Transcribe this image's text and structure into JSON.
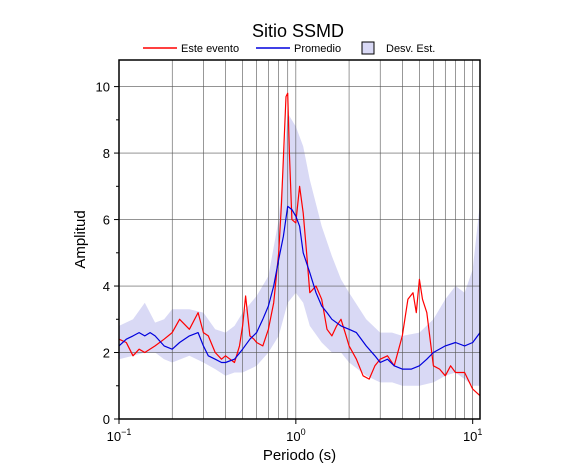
{
  "chart_data": {
    "type": "line",
    "title": "Sitio SSMD",
    "xlabel": "Periodo (s)",
    "ylabel": "Amplitud",
    "xscale": "log",
    "xlim": [
      0.1,
      11
    ],
    "ylim": [
      0,
      10.8
    ],
    "grid": true,
    "legend_position": "top",
    "x_ticks": [
      {
        "value": 0.1,
        "base": "10",
        "exp": "−1"
      },
      {
        "value": 1,
        "base": "10",
        "exp": "0"
      },
      {
        "value": 10,
        "base": "10",
        "exp": "1"
      }
    ],
    "y_ticks": [
      0,
      2,
      4,
      6,
      8,
      10
    ],
    "legend": [
      {
        "label": "Este evento",
        "kind": "line",
        "color": "#ff0000"
      },
      {
        "label": "Promedio",
        "kind": "line",
        "color": "#0000dd"
      },
      {
        "label": "Desv. Est.",
        "kind": "box",
        "color": "#d9d9f5"
      }
    ],
    "series": [
      {
        "name": "Este evento",
        "color": "#ff0000",
        "x": [
          0.1,
          0.11,
          0.12,
          0.13,
          0.14,
          0.16,
          0.18,
          0.2,
          0.22,
          0.25,
          0.28,
          0.3,
          0.32,
          0.35,
          0.38,
          0.4,
          0.45,
          0.48,
          0.5,
          0.52,
          0.55,
          0.58,
          0.6,
          0.65,
          0.7,
          0.75,
          0.8,
          0.83,
          0.86,
          0.88,
          0.9,
          0.92,
          0.95,
          1.0,
          1.05,
          1.1,
          1.15,
          1.2,
          1.3,
          1.4,
          1.5,
          1.6,
          1.7,
          1.8,
          1.9,
          2.0,
          2.2,
          2.4,
          2.6,
          2.8,
          3.0,
          3.3,
          3.6,
          4.0,
          4.3,
          4.6,
          4.8,
          5.0,
          5.2,
          5.5,
          6.0,
          6.5,
          7.0,
          7.5,
          8.0,
          9.0,
          10.0,
          11.0
        ],
        "values": [
          2.4,
          2.3,
          1.9,
          2.1,
          2.0,
          2.2,
          2.4,
          2.6,
          3.0,
          2.7,
          3.2,
          2.6,
          2.5,
          2.0,
          1.8,
          1.9,
          1.7,
          2.2,
          2.8,
          3.7,
          2.5,
          2.4,
          2.3,
          2.2,
          2.7,
          3.5,
          5.0,
          6.5,
          8.5,
          9.7,
          9.8,
          8.0,
          6.0,
          5.9,
          7.0,
          6.2,
          5.0,
          3.8,
          4.0,
          3.6,
          2.7,
          2.5,
          2.8,
          3.0,
          2.6,
          2.2,
          1.8,
          1.3,
          1.2,
          1.6,
          1.8,
          1.9,
          1.6,
          2.5,
          3.6,
          3.8,
          3.2,
          4.2,
          3.6,
          3.2,
          1.6,
          1.5,
          1.3,
          1.6,
          1.4,
          1.4,
          0.9,
          0.7
        ]
      },
      {
        "name": "Promedio",
        "color": "#0000dd",
        "x": [
          0.1,
          0.11,
          0.12,
          0.13,
          0.14,
          0.15,
          0.16,
          0.18,
          0.2,
          0.22,
          0.25,
          0.28,
          0.3,
          0.32,
          0.35,
          0.38,
          0.4,
          0.45,
          0.5,
          0.55,
          0.6,
          0.65,
          0.7,
          0.75,
          0.8,
          0.85,
          0.9,
          0.95,
          1.0,
          1.05,
          1.1,
          1.2,
          1.3,
          1.4,
          1.5,
          1.6,
          1.8,
          2.0,
          2.2,
          2.5,
          2.8,
          3.0,
          3.3,
          3.6,
          4.0,
          4.5,
          5.0,
          5.5,
          6.0,
          7.0,
          8.0,
          9.0,
          10.0,
          11.0
        ],
        "values": [
          2.2,
          2.4,
          2.5,
          2.6,
          2.5,
          2.6,
          2.5,
          2.2,
          2.1,
          2.3,
          2.5,
          2.6,
          2.2,
          1.9,
          1.8,
          1.7,
          1.7,
          1.8,
          2.1,
          2.4,
          2.6,
          3.0,
          3.4,
          4.0,
          4.8,
          5.5,
          6.4,
          6.3,
          6.1,
          5.8,
          5.0,
          4.4,
          3.8,
          3.4,
          3.2,
          3.0,
          2.8,
          2.7,
          2.6,
          2.2,
          1.9,
          1.7,
          1.8,
          1.6,
          1.5,
          1.5,
          1.6,
          1.8,
          2.0,
          2.2,
          2.3,
          2.2,
          2.3,
          2.6
        ]
      }
    ],
    "band": {
      "name": "Desv. Est.",
      "color": "#d9d9f5",
      "x": [
        0.1,
        0.12,
        0.14,
        0.16,
        0.18,
        0.2,
        0.25,
        0.3,
        0.35,
        0.4,
        0.45,
        0.5,
        0.6,
        0.7,
        0.8,
        0.9,
        1.0,
        1.1,
        1.2,
        1.4,
        1.6,
        1.8,
        2.0,
        2.5,
        3.0,
        3.5,
        4.0,
        5.0,
        6.0,
        7.0,
        8.0,
        9.0,
        10.0,
        11.0
      ],
      "upper": [
        2.8,
        3.0,
        3.5,
        2.9,
        3.0,
        3.3,
        3.3,
        3.2,
        2.7,
        2.6,
        2.8,
        3.2,
        3.7,
        4.3,
        6.0,
        9.2,
        8.8,
        8.2,
        7.2,
        5.8,
        4.9,
        4.2,
        3.8,
        3.0,
        2.6,
        2.6,
        2.5,
        2.6,
        3.0,
        3.6,
        4.0,
        3.8,
        4.5,
        6.5
      ],
      "lower": [
        1.8,
        1.9,
        2.0,
        2.0,
        1.8,
        1.7,
        1.9,
        1.7,
        1.5,
        1.3,
        1.4,
        1.4,
        1.6,
        2.0,
        2.5,
        3.5,
        3.8,
        3.5,
        2.8,
        2.3,
        2.0,
        2.0,
        1.7,
        1.3,
        1.1,
        1.1,
        1.0,
        1.0,
        1.1,
        1.3,
        1.4,
        1.2,
        1.0,
        1.0
      ]
    }
  }
}
